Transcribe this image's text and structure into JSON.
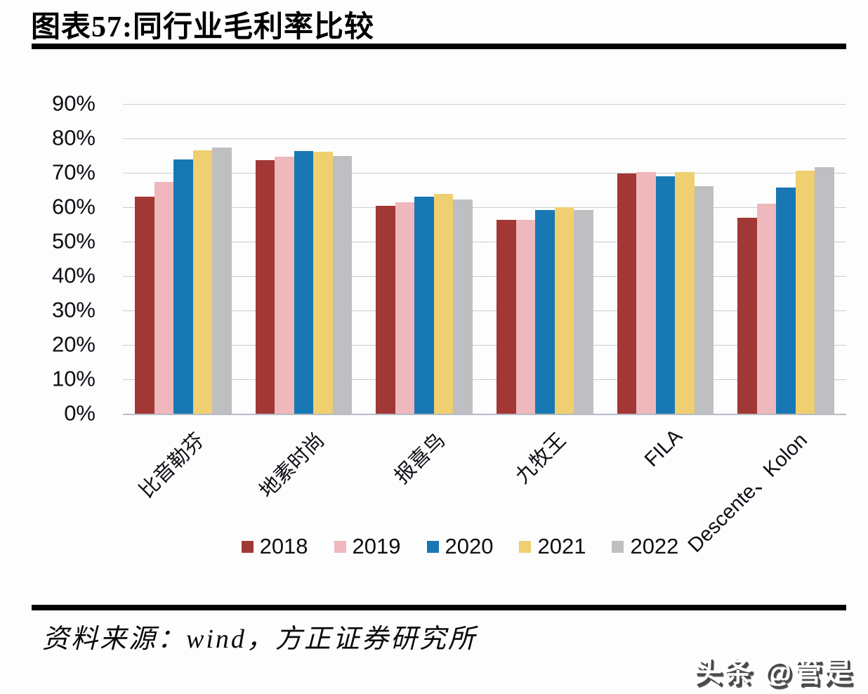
{
  "header": {
    "title": "图表57:同行业毛利率比较"
  },
  "chart_data": {
    "type": "bar",
    "title": "图表57:同行业毛利率比较",
    "categories": [
      "比音勒芬",
      "地素时尚",
      "报喜鸟",
      "九牧王",
      "FILA",
      "Descente、Kolon"
    ],
    "series": [
      {
        "name": "2018",
        "color": "#a23835",
        "values": [
          63.0,
          73.6,
          60.5,
          56.4,
          69.8,
          56.9
        ]
      },
      {
        "name": "2019",
        "color": "#eeb8bc",
        "values": [
          67.3,
          74.7,
          61.4,
          56.3,
          70.2,
          61.1
        ]
      },
      {
        "name": "2020",
        "color": "#1878b4",
        "values": [
          73.9,
          76.4,
          63.1,
          59.2,
          68.9,
          65.8
        ]
      },
      {
        "name": "2021",
        "color": "#efcf6f",
        "values": [
          76.5,
          76.2,
          63.8,
          60.0,
          70.3,
          70.7
        ]
      },
      {
        "name": "2022",
        "color": "#bfbfc1",
        "values": [
          77.4,
          74.9,
          62.3,
          59.1,
          66.1,
          71.6
        ]
      }
    ],
    "y_axis": {
      "ticks": [
        "90%",
        "80%",
        "70%",
        "60%",
        "50%",
        "40%",
        "30%",
        "20%",
        "10%",
        "0%"
      ],
      "min": 0,
      "max": 90,
      "step": 10
    },
    "unit": "%",
    "grid": true,
    "legend_position": "bottom",
    "colors": {
      "gridline": "#c7ccd5",
      "axis_line": "#b7bcc5",
      "text": "#0d0d14"
    }
  },
  "footer": {
    "source": "资料来源：wind，方正证券研究所",
    "watermark": "头条 @管是"
  }
}
